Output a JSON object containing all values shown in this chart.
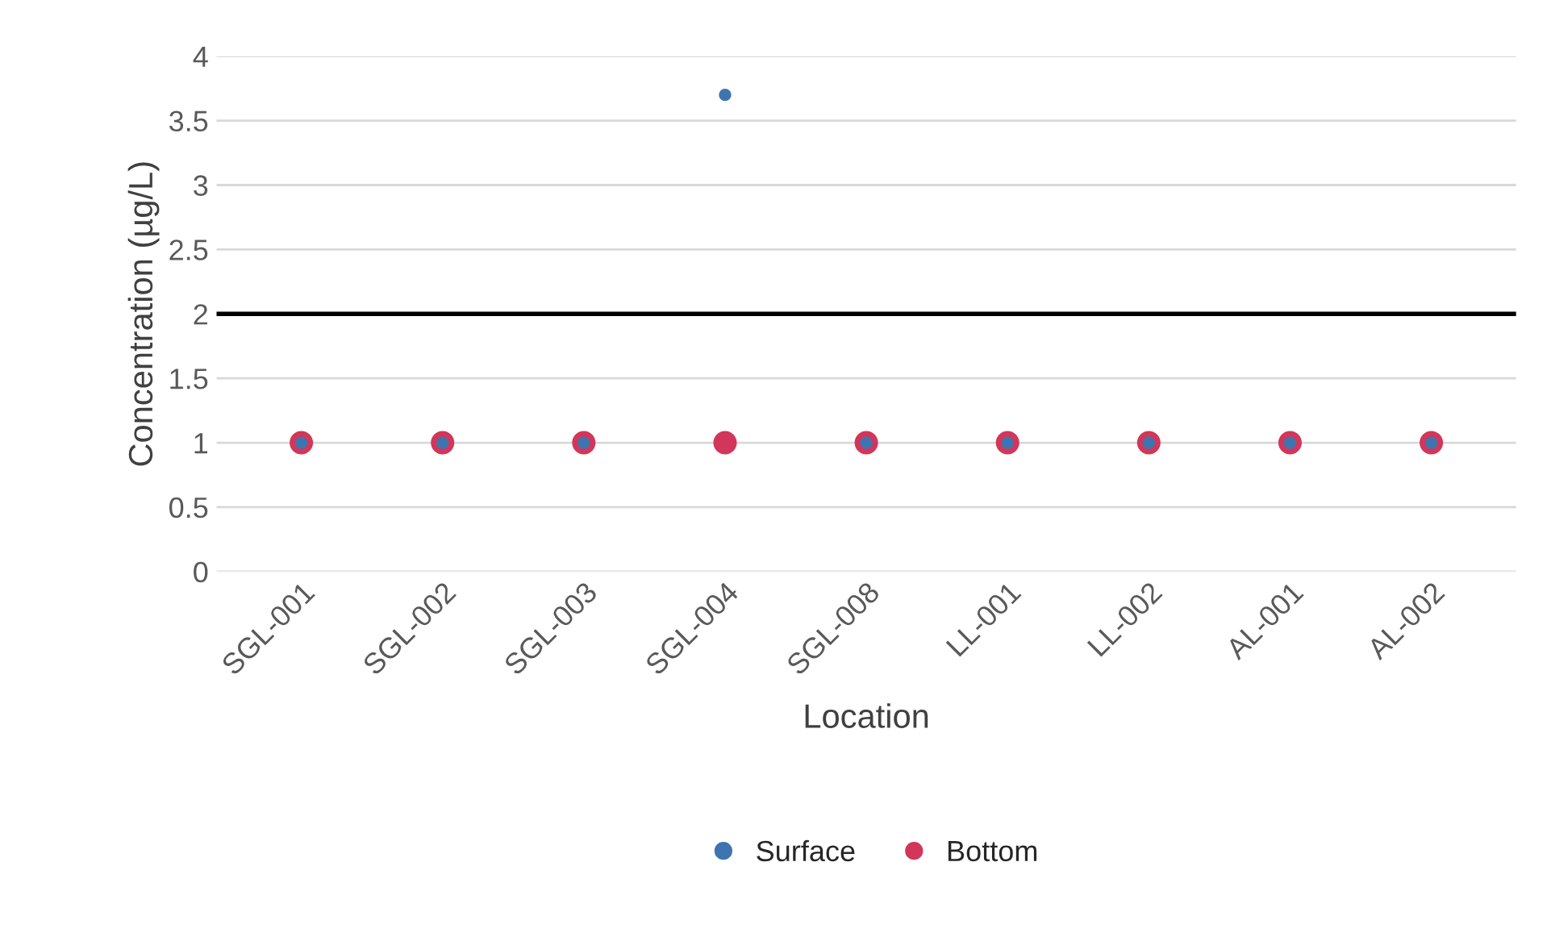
{
  "chart_data": {
    "type": "scatter",
    "xlabel": "Location",
    "ylabel": "Concentration (µg/L)",
    "categories": [
      "SGL-001",
      "SGL-002",
      "SGL-003",
      "SGL-004",
      "SGL-008",
      "LL-001",
      "LL-002",
      "AL-001",
      "AL-002"
    ],
    "series": [
      {
        "name": "Surface",
        "color": "#3e75b0",
        "values": [
          1,
          1,
          1,
          3.7,
          1,
          1,
          1,
          1,
          1
        ]
      },
      {
        "name": "Bottom",
        "color": "#d2365a",
        "values": [
          1,
          1,
          1,
          1,
          1,
          1,
          1,
          1,
          1
        ]
      }
    ],
    "ylim": [
      0,
      4
    ],
    "yticks": [
      0,
      0.5,
      1,
      1.5,
      2,
      2.5,
      3,
      3.5,
      4
    ],
    "ref_lines": [
      {
        "axis": "y",
        "value": 2,
        "color": "#000000",
        "line_style": "solid"
      }
    ],
    "grid": "y",
    "legend": "bottom",
    "marker": "circle"
  }
}
